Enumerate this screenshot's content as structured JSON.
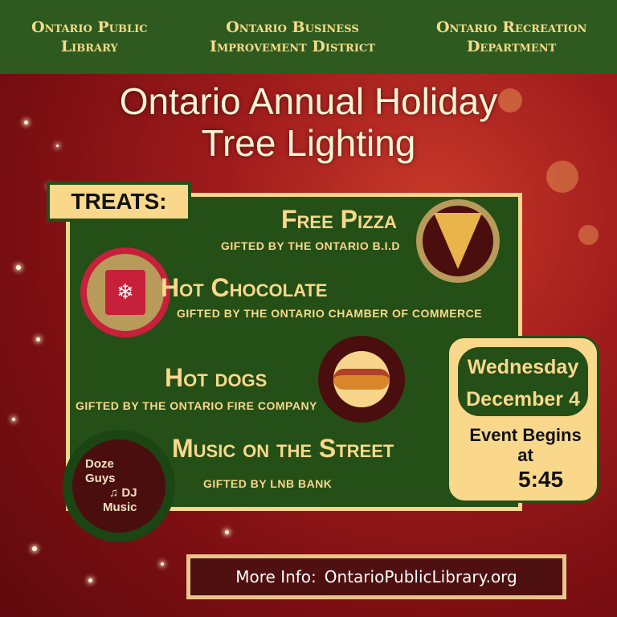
{
  "sponsors": [
    "Ontario Public Library",
    "Ontario Business Improvement District",
    "Ontario Recreation Department"
  ],
  "title": {
    "line1": "Ontario Annual Holiday",
    "line2": "Tree Lighting"
  },
  "treats_label": "TREATS:",
  "items": [
    {
      "title": "Free Pizza",
      "subtitle": "gifted by the Ontario B.I.D",
      "icon": "pizza-icon"
    },
    {
      "title": "Hot Chocolate",
      "subtitle": "gifted by the Ontario Chamber of Commerce",
      "icon": "hot-chocolate-icon"
    },
    {
      "title": "Hot dogs",
      "subtitle": "gifted by the Ontario Fire Company",
      "icon": "hot-dog-icon"
    },
    {
      "title": "Music on the Street",
      "subtitle": "Gifted by LNB Bank",
      "icon": "music-notes-icon"
    }
  ],
  "dj_logo": {
    "line1": "Doze",
    "line2": "Guys",
    "line3": "DJ",
    "line4": "Music"
  },
  "date": {
    "day": "Wednesday",
    "date": "December 4",
    "event_label": "Event Begins at",
    "time": "5:45"
  },
  "more_info": {
    "label": "More Info:",
    "url": "OntarioPublicLibrary.org"
  },
  "colors": {
    "green": "#244f16",
    "cream": "#f9d88c",
    "red": "#a01c1c",
    "maroon": "#4e1010"
  }
}
